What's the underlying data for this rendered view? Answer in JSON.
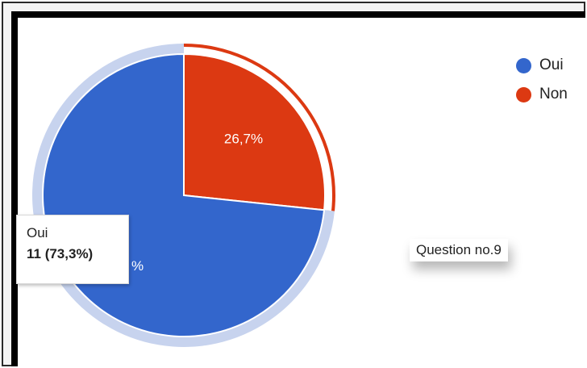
{
  "chart_data": {
    "type": "pie",
    "slices": [
      {
        "label": "Oui",
        "value": 11,
        "percent_label": "73,3%",
        "color": "#3366cc"
      },
      {
        "label": "Non",
        "value": 4,
        "percent_label": "26,7%",
        "color": "#dc3912"
      }
    ],
    "legend": {
      "position": "top-right",
      "items": [
        "Oui",
        "Non"
      ]
    },
    "selected_slice": "Oui"
  },
  "tooltip": {
    "label": "Oui",
    "value": "11 (73,3%)"
  },
  "partial_label": "%",
  "annotation": "Question no.9",
  "colors": {
    "selection_ring": "#c7d3ee",
    "frame": "#000000"
  }
}
